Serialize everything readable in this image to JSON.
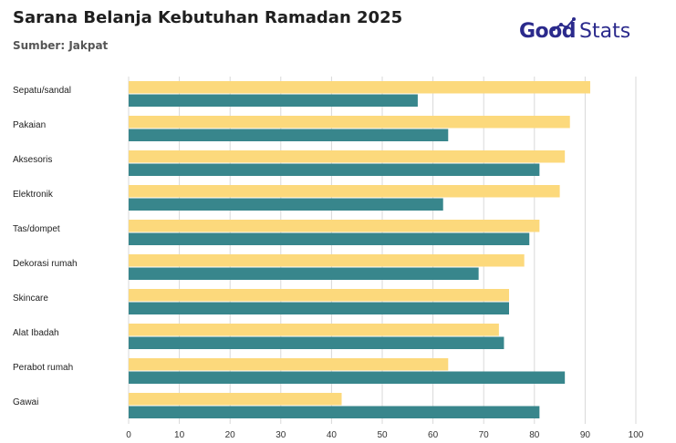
{
  "header": {
    "title": "Sarana Belanja Kebutuhan Ramadan 2025",
    "subtitle": "Sumber: Jakpat"
  },
  "logo": {
    "part1": "Good",
    "part2": "Stats"
  },
  "colors": {
    "series_1": "#fcd97c",
    "series_2": "#38868c",
    "grid": "#d9d9d9",
    "logo": "#2b2a8c"
  },
  "chart_data": {
    "type": "bar",
    "orientation": "horizontal",
    "categories": [
      "Sepatu/sandal",
      "Pakaian",
      "Aksesoris",
      "Elektronik",
      "Tas/dompet",
      "Dekorasi rumah",
      "Skincare",
      "Alat Ibadah",
      "Perabot rumah",
      "Gawai"
    ],
    "series": [
      {
        "values": [
          91,
          87,
          86,
          85,
          81,
          78,
          75,
          73,
          63,
          42
        ]
      },
      {
        "values": [
          57,
          63,
          81,
          62,
          79,
          69,
          75,
          74,
          86,
          81
        ]
      }
    ],
    "xlim": [
      0,
      100
    ],
    "xticks": [
      0,
      10,
      20,
      30,
      40,
      50,
      60,
      70,
      80,
      90,
      100
    ],
    "grid": true,
    "legend": "none"
  }
}
